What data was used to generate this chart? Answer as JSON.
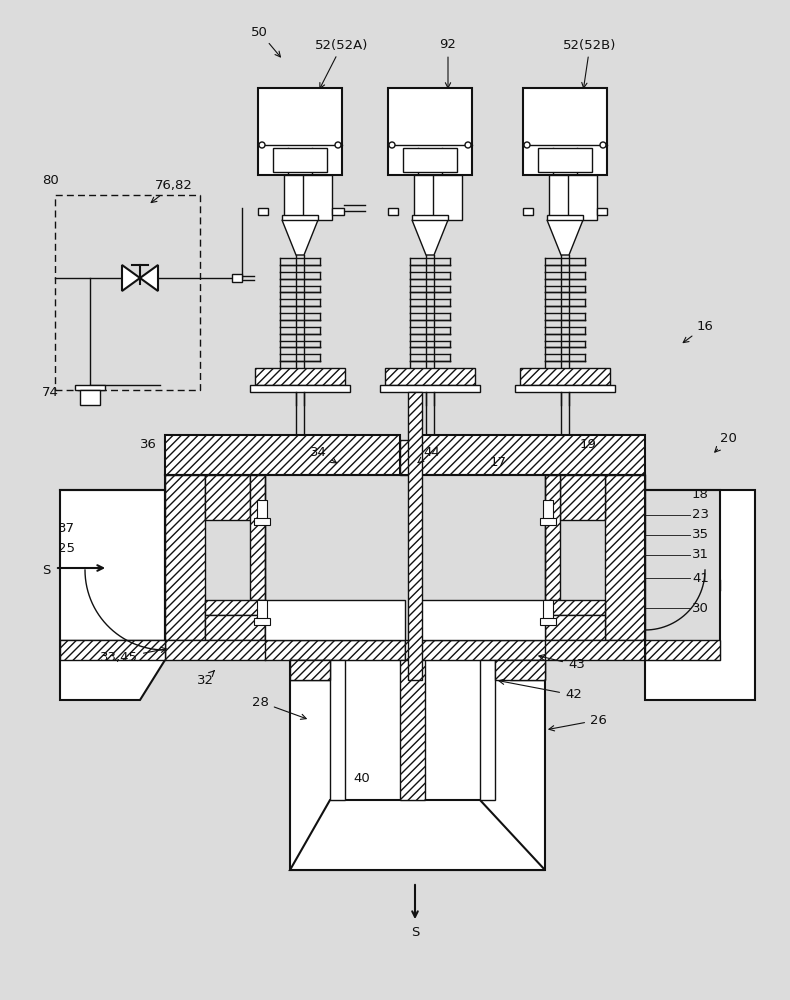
{
  "bg_color": "#dcdcdc",
  "line_color": "#111111",
  "figsize": [
    7.9,
    10.0
  ],
  "dpi": 100,
  "actuator_centers": [
    300,
    430,
    565
  ],
  "actuator_types": [
    "52A",
    "92",
    "52B"
  ]
}
